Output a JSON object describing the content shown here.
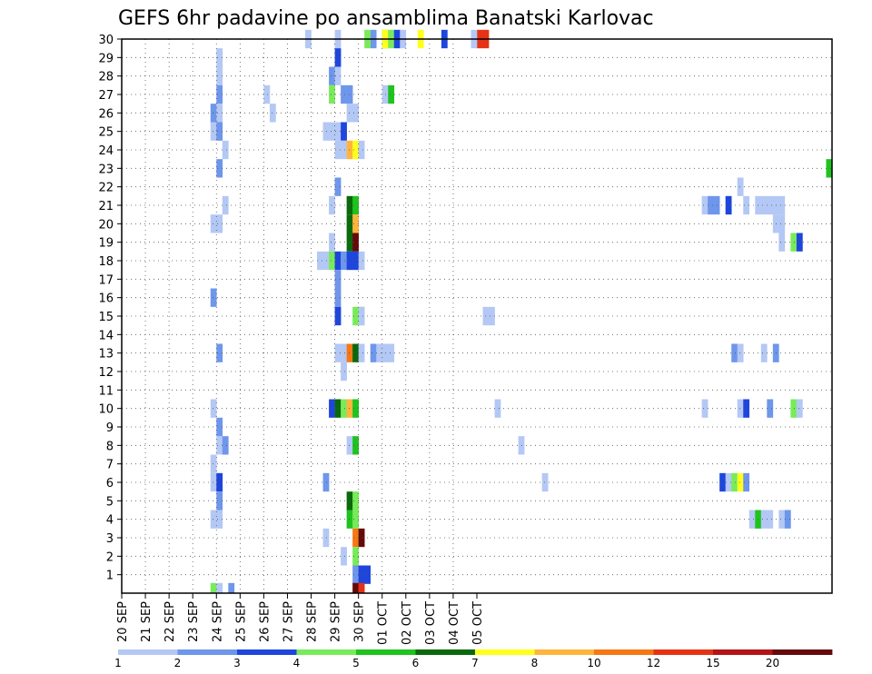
{
  "chart_data": {
    "type": "heatmap",
    "title": "GEFS 6hr padavine po ansamblima Banatski Karlovac",
    "xlabel": "",
    "ylabel": "",
    "x_start": "2025-09-20 00:00",
    "x_step_hours": 6,
    "x_tick_labels": [
      "20 SEP",
      "21 SEP",
      "22 SEP",
      "23 SEP",
      "24 SEP",
      "25 SEP",
      "26 SEP",
      "27 SEP",
      "28 SEP",
      "29 SEP",
      "30 SEP",
      "01 OCT",
      "02 OCT",
      "03 OCT",
      "04 OCT",
      "05 OCT"
    ],
    "y_tick_labels": [
      "1",
      "2",
      "3",
      "4",
      "5",
      "6",
      "7",
      "8",
      "9",
      "10",
      "11",
      "12",
      "13",
      "14",
      "15",
      "16",
      "17",
      "18",
      "19",
      "20",
      "21",
      "22",
      "23",
      "24",
      "25",
      "26",
      "27",
      "28",
      "29",
      "30"
    ],
    "ylim": [
      0,
      30
    ],
    "grid": true,
    "colorbar": {
      "levels": [
        1,
        2,
        3,
        4,
        5,
        6,
        7,
        8,
        10,
        12,
        15,
        20
      ],
      "level_labels": [
        "1",
        "2",
        "3",
        "4",
        "5",
        "6",
        "7",
        "8",
        "10",
        "12",
        "15",
        "20"
      ],
      "colors": [
        "#b4c8f5",
        "#6e96eb",
        "#1e46dc",
        "#78eb5a",
        "#1ec31e",
        "#0a690a",
        "#ffff1e",
        "#ffb43c",
        "#f57814",
        "#e63214",
        "#b41414",
        "#640a0a"
      ]
    },
    "cells": [
      [
        30,
        1,
        36
      ],
      [
        30,
        2,
        42
      ],
      [
        30,
        5,
        44
      ],
      [
        30,
        7,
        50
      ],
      [
        30,
        10,
        60
      ],
      [
        30,
        7,
        44
      ],
      [
        30,
        4,
        45
      ],
      [
        30,
        3,
        46
      ],
      [
        30,
        1,
        47
      ],
      [
        30,
        3,
        54
      ],
      [
        30,
        1,
        59
      ],
      [
        30,
        10,
        61
      ],
      [
        30,
        4,
        41
      ],
      [
        30,
        1,
        31
      ],
      [
        29,
        1,
        16
      ],
      [
        29,
        3,
        36
      ],
      [
        28,
        1,
        16
      ],
      [
        28,
        2,
        35
      ],
      [
        28,
        1,
        36
      ],
      [
        27,
        2,
        16
      ],
      [
        27,
        1,
        24
      ],
      [
        27,
        4,
        35
      ],
      [
        27,
        2,
        37
      ],
      [
        27,
        2,
        38
      ],
      [
        27,
        1,
        44
      ],
      [
        27,
        5,
        45
      ],
      [
        26,
        2,
        15
      ],
      [
        26,
        1,
        16
      ],
      [
        26,
        1,
        25
      ],
      [
        26,
        1,
        38
      ],
      [
        26,
        1,
        39
      ],
      [
        25,
        1,
        15
      ],
      [
        25,
        2,
        16
      ],
      [
        25,
        1,
        34
      ],
      [
        25,
        1,
        35
      ],
      [
        25,
        1,
        36
      ],
      [
        25,
        3,
        37
      ],
      [
        24,
        1,
        17
      ],
      [
        24,
        1,
        36
      ],
      [
        24,
        1,
        37
      ],
      [
        24,
        8,
        38
      ],
      [
        24,
        7,
        39
      ],
      [
        24,
        1,
        40
      ],
      [
        23,
        2,
        16
      ],
      [
        23,
        5,
        119
      ],
      [
        22,
        2,
        36
      ],
      [
        22,
        1,
        104
      ],
      [
        21,
        1,
        17
      ],
      [
        21,
        1,
        35
      ],
      [
        21,
        6,
        38
      ],
      [
        21,
        5,
        39
      ],
      [
        21,
        1,
        98
      ],
      [
        21,
        2,
        99
      ],
      [
        21,
        2,
        100
      ],
      [
        21,
        3,
        102
      ],
      [
        21,
        1,
        105
      ],
      [
        21,
        1,
        107
      ],
      [
        21,
        1,
        108
      ],
      [
        21,
        1,
        109
      ],
      [
        21,
        1,
        110
      ],
      [
        21,
        1,
        111
      ],
      [
        20,
        1,
        15
      ],
      [
        20,
        1,
        16
      ],
      [
        20,
        6,
        38
      ],
      [
        20,
        8,
        39
      ],
      [
        20,
        1,
        110
      ],
      [
        20,
        1,
        111
      ],
      [
        19,
        1,
        35
      ],
      [
        19,
        6,
        38
      ],
      [
        19,
        12,
        39
      ],
      [
        19,
        1,
        111
      ],
      [
        19,
        4,
        113
      ],
      [
        19,
        3,
        114
      ],
      [
        18,
        1,
        33
      ],
      [
        18,
        1,
        34
      ],
      [
        18,
        4,
        35
      ],
      [
        18,
        3,
        36
      ],
      [
        18,
        2,
        37
      ],
      [
        18,
        3,
        38
      ],
      [
        18,
        3,
        39
      ],
      [
        18,
        1,
        40
      ],
      [
        17,
        2,
        36
      ],
      [
        16,
        2,
        15
      ],
      [
        16,
        2,
        36
      ],
      [
        15,
        3,
        36
      ],
      [
        15,
        4,
        40
      ],
      [
        15,
        4,
        39
      ],
      [
        15,
        1,
        40
      ],
      [
        15,
        1,
        61
      ],
      [
        15,
        1,
        62
      ],
      [
        13,
        2,
        16
      ],
      [
        13,
        1,
        36
      ],
      [
        13,
        1,
        37
      ],
      [
        13,
        9,
        38
      ],
      [
        13,
        6,
        39
      ],
      [
        13,
        1,
        40
      ],
      [
        13,
        2,
        42
      ],
      [
        13,
        1,
        43
      ],
      [
        13,
        1,
        44
      ],
      [
        13,
        1,
        45
      ],
      [
        13,
        2,
        103
      ],
      [
        13,
        1,
        104
      ],
      [
        13,
        1,
        108
      ],
      [
        13,
        2,
        110
      ],
      [
        12,
        1,
        37
      ],
      [
        10,
        1,
        15
      ],
      [
        10,
        3,
        35
      ],
      [
        10,
        6,
        36
      ],
      [
        10,
        4,
        37
      ],
      [
        10,
        8,
        38
      ],
      [
        10,
        5,
        39
      ],
      [
        10,
        1,
        63
      ],
      [
        10,
        1,
        98
      ],
      [
        10,
        1,
        104
      ],
      [
        10,
        3,
        105
      ],
      [
        10,
        2,
        109
      ],
      [
        10,
        4,
        113
      ],
      [
        10,
        1,
        114
      ],
      [
        8,
        1,
        16
      ],
      [
        8,
        2,
        17
      ],
      [
        8,
        1,
        38
      ],
      [
        8,
        5,
        39
      ],
      [
        8,
        1,
        67
      ],
      [
        9,
        2,
        16
      ],
      [
        7,
        1,
        15
      ],
      [
        6,
        1,
        15
      ],
      [
        6,
        3,
        16
      ],
      [
        6,
        2,
        34
      ],
      [
        6,
        1,
        71
      ],
      [
        6,
        3,
        101
      ],
      [
        6,
        1,
        102
      ],
      [
        6,
        4,
        103
      ],
      [
        6,
        7,
        104
      ],
      [
        6,
        2,
        105
      ],
      [
        5,
        2,
        16
      ],
      [
        5,
        6,
        38
      ],
      [
        5,
        4,
        39
      ],
      [
        4,
        1,
        15
      ],
      [
        4,
        1,
        16
      ],
      [
        4,
        5,
        38
      ],
      [
        4,
        4,
        39
      ],
      [
        4,
        1,
        106
      ],
      [
        4,
        1,
        107
      ],
      [
        4,
        5,
        107
      ],
      [
        4,
        1,
        108
      ],
      [
        4,
        1,
        109
      ],
      [
        4,
        1,
        111
      ],
      [
        4,
        2,
        112
      ],
      [
        3,
        1,
        34
      ],
      [
        3,
        9,
        39
      ],
      [
        3,
        12,
        40
      ],
      [
        2,
        1,
        37
      ],
      [
        2,
        4,
        39
      ],
      [
        1,
        2,
        39
      ],
      [
        1,
        3,
        40
      ],
      [
        1,
        3,
        41
      ],
      [
        0,
        4,
        15
      ],
      [
        0,
        1,
        16
      ],
      [
        0,
        2,
        18
      ],
      [
        0,
        12,
        39
      ],
      [
        0,
        10,
        40
      ]
    ]
  }
}
